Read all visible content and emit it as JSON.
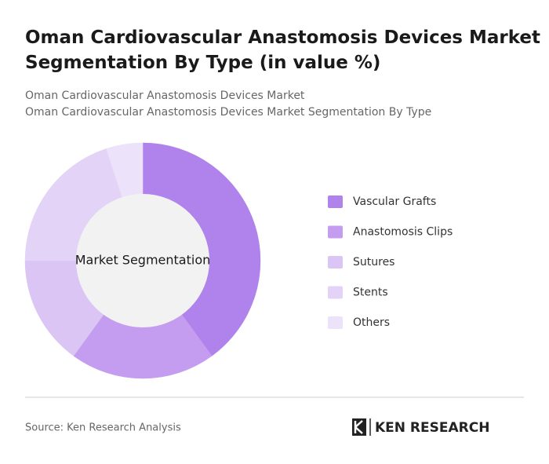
{
  "chart_data": {
    "type": "donut",
    "title": "Oman Cardiovascular Anastomosis Devices Market Segmentation By Type (in value %)",
    "subtitles": [
      "Oman Cardiovascular Anastomosis Devices Market",
      "Oman Cardiovascular Anastomosis Devices Market Segmentation By Type"
    ],
    "center_label": "Market Segmentation",
    "categories": [
      "Vascular Grafts",
      "Anastomosis Clips",
      "Sutures",
      "Stents",
      "Others"
    ],
    "values": [
      40,
      20,
      15,
      20,
      5
    ],
    "colors": [
      "#b083ec",
      "#c49df0",
      "#dac5f5",
      "#e3d3f7",
      "#ece2f9"
    ],
    "source": "Source: Ken Research Analysis",
    "brand": "KEN RESEARCH"
  }
}
